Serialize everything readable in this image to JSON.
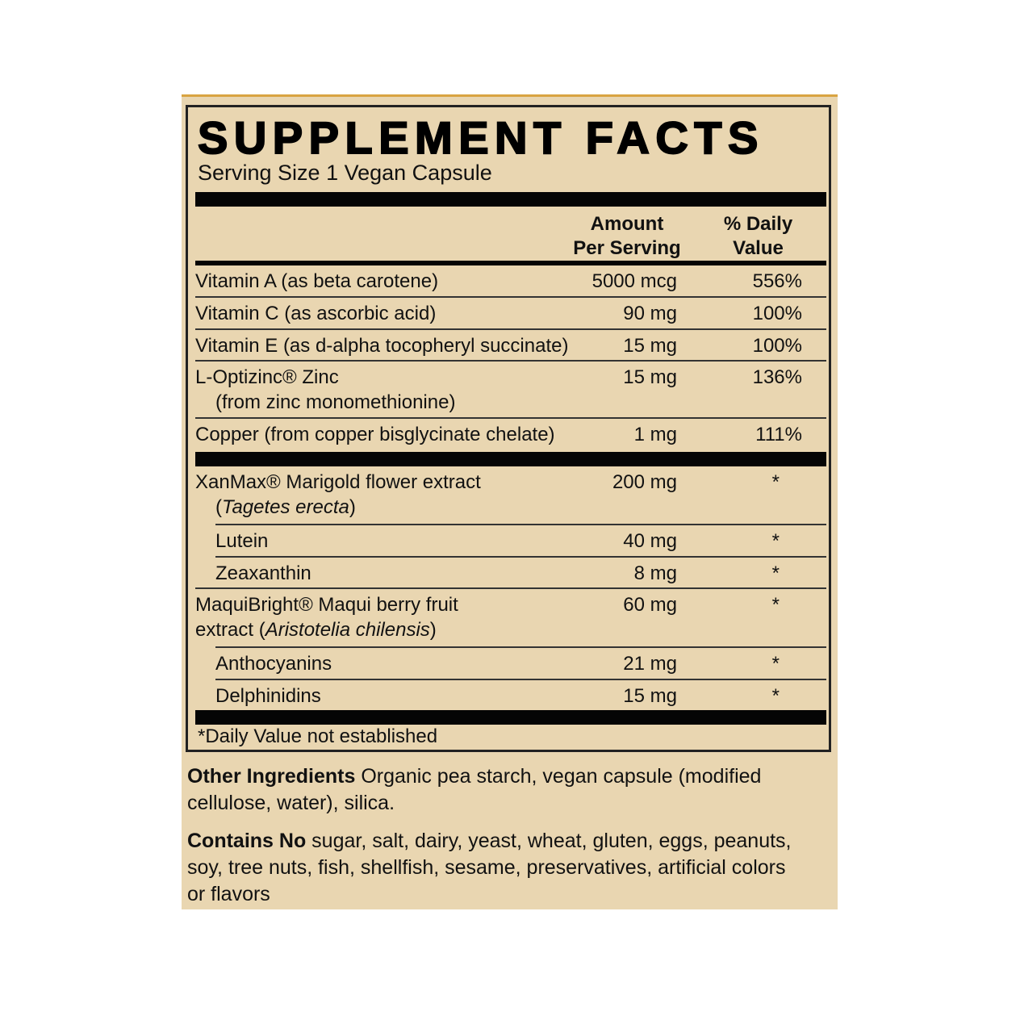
{
  "title": "SUPPLEMENT FACTS",
  "serving_size": "Serving Size 1 Vegan Capsule",
  "header": {
    "amount": "Amount\nPer Serving",
    "daily_value": "% Daily\nValue"
  },
  "group1": [
    {
      "name": "Vitamin A (as beta carotene)",
      "amount": "5000 mcg",
      "dv": "556%"
    },
    {
      "name": "Vitamin C (as ascorbic acid)",
      "amount": "90 mg",
      "dv": "100%"
    },
    {
      "name": "Vitamin E (as d-alpha tocopheryl succinate)",
      "amount": "15 mg",
      "dv": "100%"
    },
    {
      "name": "L-Optizinc® Zinc",
      "name2": "(from zinc monomethionine)",
      "amount": "15 mg",
      "dv": "136%"
    },
    {
      "name": "Copper (from copper bisglycinate chelate)",
      "amount": "1 mg",
      "dv": "111%"
    }
  ],
  "group2": [
    {
      "name": "XanMax® Marigold flower extract",
      "name2_pre": "(",
      "name2_italic": "Tagetes erecta",
      "name2_post": ")",
      "amount": "200 mg",
      "dv": "*"
    },
    {
      "name": "Lutein",
      "sub": true,
      "amount": "40 mg",
      "dv": "*"
    },
    {
      "name": "Zeaxanthin",
      "sub": true,
      "amount": "8 mg",
      "dv": "*"
    },
    {
      "name": "MaquiBright® Maqui berry fruit",
      "name2_pre": "extract (",
      "name2_italic": "Aristotelia chilensis",
      "name2_post": ")",
      "amount": "60 mg",
      "dv": "*"
    },
    {
      "name": "Anthocyanins",
      "sub": true,
      "amount": "21 mg",
      "dv": "*"
    },
    {
      "name": "Delphinidins",
      "sub": true,
      "amount": "15 mg",
      "dv": "*"
    }
  ],
  "footnote": "*Daily Value not established",
  "other_ingredients": {
    "label": "Other Ingredients",
    "text": " Organic pea starch, vegan capsule (modified cellulose, water), silica."
  },
  "contains_no": {
    "label": "Contains No",
    "text": " sugar, salt, dairy, yeast, wheat, gluten, eggs, peanuts, soy, tree nuts, fish, shellfish, sesame, preservatives, artificial colors or flavors"
  }
}
